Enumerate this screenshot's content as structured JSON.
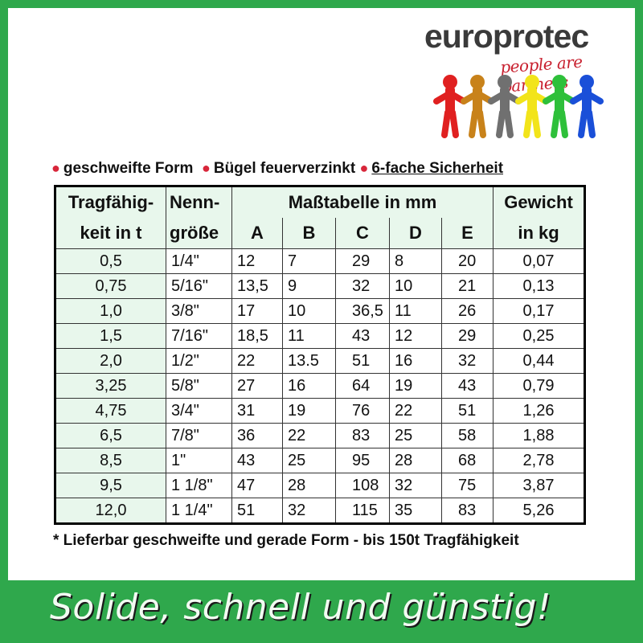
{
  "logo": {
    "brand": "europrotec",
    "slogan": "people are partners",
    "figure_colors": [
      "#e02020",
      "#c8821a",
      "#707070",
      "#f2e41a",
      "#2ec03a",
      "#1a4fd8"
    ]
  },
  "features": [
    "geschweifte Form",
    "Bügel feuerverzinkt",
    "6-fache Sicherheit"
  ],
  "table": {
    "headers": {
      "capacity": [
        "Tragfähig-",
        "keit in t"
      ],
      "size": [
        "Nenn-",
        "größe"
      ],
      "dims_title": "Maßtabelle in mm",
      "dims": [
        "A",
        "B",
        "C",
        "D",
        "E"
      ],
      "weight": [
        "Gewicht",
        "in kg"
      ]
    },
    "rows": [
      [
        "0,5",
        "1/4\"",
        "12",
        "7",
        "29",
        "8",
        "20",
        "0,07"
      ],
      [
        "0,75",
        "5/16\"",
        "13,5",
        "9",
        "32",
        "10",
        "21",
        "0,13"
      ],
      [
        "1,0",
        "3/8\"",
        "17",
        "10",
        "36,5",
        "11",
        "26",
        "0,17"
      ],
      [
        "1,5",
        "7/16\"",
        "18,5",
        "11",
        "43",
        "12",
        "29",
        "0,25"
      ],
      [
        "2,0",
        "1/2\"",
        "22",
        "13.5",
        "51",
        "16",
        "32",
        "0,44"
      ],
      [
        "3,25",
        "5/8\"",
        "27",
        "16",
        "64",
        "19",
        "43",
        "0,79"
      ],
      [
        "4,75",
        "3/4\"",
        "31",
        "19",
        "76",
        "22",
        "51",
        "1,26"
      ],
      [
        "6,5",
        "7/8\"",
        "36",
        "22",
        "83",
        "25",
        "58",
        "1,88"
      ],
      [
        "8,5",
        "1\"",
        "43",
        "25",
        "95",
        "28",
        "68",
        "2,78"
      ],
      [
        "9,5",
        "1 1/8\"",
        "47",
        "28",
        "108",
        "32",
        "75",
        "3,87"
      ],
      [
        "12,0",
        "1 1/4\"",
        "51",
        "32",
        "115",
        "35",
        "83",
        "5,26"
      ]
    ]
  },
  "note": "* Lieferbar  geschweifte und gerade Form - bis 150t Tragfähigkeit",
  "banner": "Solide, schnell und günstig!",
  "colors": {
    "frame": "#2fa84c",
    "header_bg": "#e8f7ec",
    "bullet": "#d8263a"
  }
}
